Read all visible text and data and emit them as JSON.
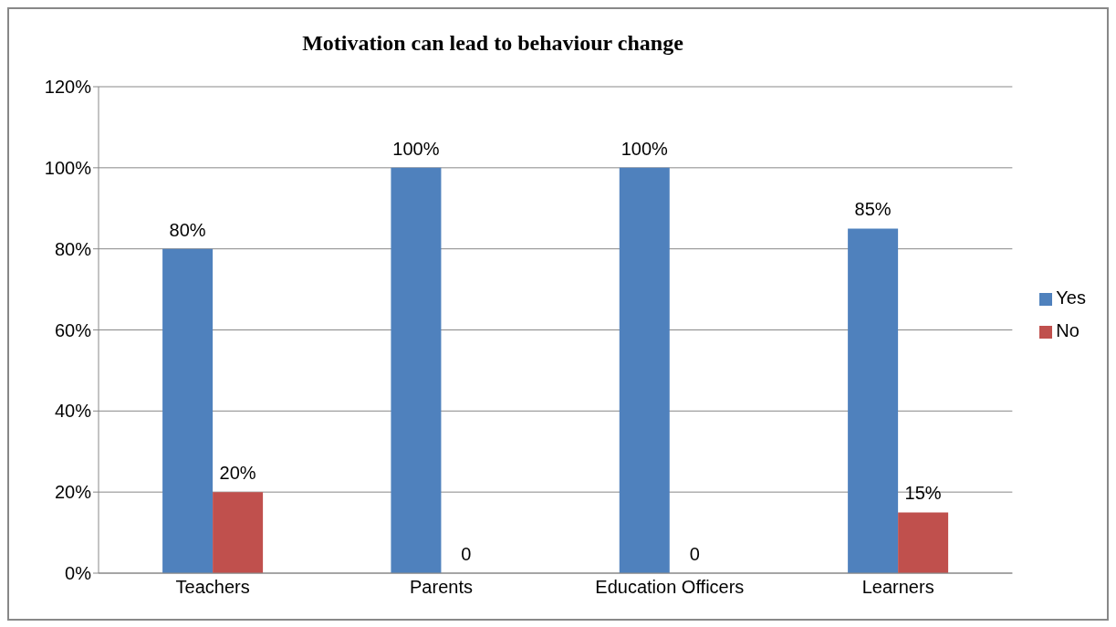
{
  "chart_data": {
    "type": "bar",
    "title": "Motivation can lead to behaviour change",
    "categories": [
      "Teachers",
      "Parents",
      "Education Officers",
      "Learners"
    ],
    "series": [
      {
        "name": "Yes",
        "color": "#4f81bd",
        "values": [
          80,
          100,
          100,
          85
        ],
        "value_labels": [
          "80%",
          "100%",
          "100%",
          "85%"
        ]
      },
      {
        "name": "No",
        "color": "#c0504d",
        "values": [
          20,
          0,
          0,
          15
        ],
        "value_labels": [
          "20%",
          "0",
          "0",
          "15%"
        ]
      }
    ],
    "ylim": [
      0,
      120
    ],
    "yticks": [
      {
        "value": 0,
        "label": "0%"
      },
      {
        "value": 20,
        "label": "20%"
      },
      {
        "value": 40,
        "label": "40%"
      },
      {
        "value": 60,
        "label": "60%"
      },
      {
        "value": 80,
        "label": "80%"
      },
      {
        "value": 100,
        "label": "100%"
      },
      {
        "value": 120,
        "label": "120%"
      }
    ],
    "grid": "y",
    "legend": "right"
  }
}
